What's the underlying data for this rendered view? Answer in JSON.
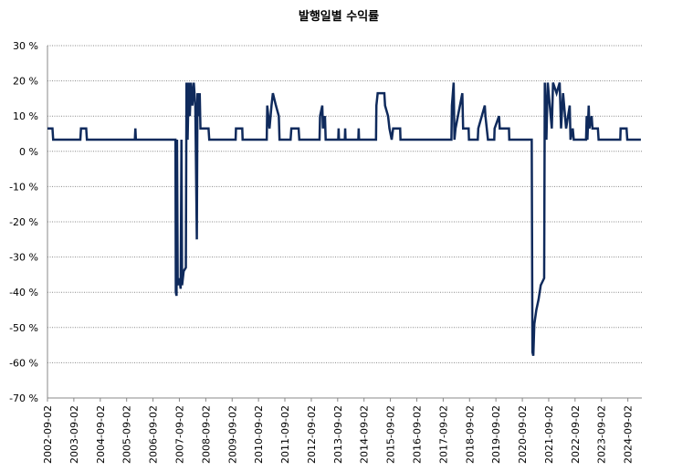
{
  "chart_data": {
    "type": "line",
    "title": "발행일별 수익률",
    "color": "#0f2a5c",
    "grid": true,
    "ylim": [
      -70,
      30
    ],
    "yticks": [
      {
        "value": -70,
        "label": "-70 %"
      },
      {
        "value": -60,
        "label": "-60 %"
      },
      {
        "value": -50,
        "label": "-50 %"
      },
      {
        "value": -40,
        "label": "-40 %"
      },
      {
        "value": -30,
        "label": "-30 %"
      },
      {
        "value": -20,
        "label": "-20 %"
      },
      {
        "value": -10,
        "label": "-10 %"
      },
      {
        "value": 0,
        "label": "0 %"
      },
      {
        "value": 10,
        "label": "10 %"
      },
      {
        "value": 20,
        "label": "20 %"
      },
      {
        "value": 30,
        "label": "30 %"
      }
    ],
    "xlim": [
      "2002-09-02",
      "2025-03-15"
    ],
    "xticks": [
      "2002-09-02",
      "2003-09-02",
      "2004-09-02",
      "2005-09-02",
      "2006-09-02",
      "2007-09-02",
      "2008-09-02",
      "2009-09-02",
      "2010-09-02",
      "2011-09-02",
      "2012-09-02",
      "2013-09-02",
      "2014-09-02",
      "2015-09-02",
      "2016-09-02",
      "2017-09-02",
      "2018-09-02",
      "2019-09-02",
      "2020-09-02",
      "2021-09-02",
      "2022-09-02",
      "2023-09-02",
      "2024-09-02"
    ],
    "x": [
      "2002-09-02",
      "2002-11-10",
      "2002-11-20",
      "2003-12-01",
      "2003-12-10",
      "2004-02-20",
      "2004-03-01",
      "2005-12-25",
      "2006-01-01",
      "2006-01-08",
      "2007-07-10",
      "2007-07-15",
      "2007-07-25",
      "2007-08-01",
      "2007-08-10",
      "2007-09-01",
      "2007-09-20",
      "2007-10-01",
      "2007-10-10",
      "2007-11-01",
      "2007-12-01",
      "2007-12-10",
      "2007-12-25",
      "2008-01-10",
      "2008-01-25",
      "2008-02-10",
      "2008-03-01",
      "2008-03-20",
      "2008-04-10",
      "2008-05-01",
      "2008-05-10",
      "2008-05-25",
      "2008-06-10",
      "2008-06-20",
      "2008-10-10",
      "2008-10-20",
      "2009-10-20",
      "2009-10-25",
      "2010-01-20",
      "2010-01-25",
      "2010-12-25",
      "2011-01-01",
      "2011-02-01",
      "2011-03-01",
      "2011-03-20",
      "2011-05-01",
      "2011-06-10",
      "2011-06-20",
      "2011-11-20",
      "2011-12-01",
      "2012-03-10",
      "2012-03-20",
      "2012-12-25",
      "2013-01-01",
      "2013-02-01",
      "2013-02-10",
      "2013-03-10",
      "2013-03-20",
      "2013-09-10",
      "2013-09-15",
      "2013-09-20",
      "2013-12-10",
      "2013-12-15",
      "2013-12-20",
      "2014-06-15",
      "2014-06-20",
      "2014-06-25",
      "2015-02-15",
      "2015-02-20",
      "2015-03-10",
      "2015-06-10",
      "2015-06-20",
      "2015-08-01",
      "2015-08-20",
      "2015-09-20",
      "2015-10-10",
      "2016-01-15",
      "2016-01-20",
      "2017-12-25",
      "2018-01-01",
      "2018-01-25",
      "2018-02-05",
      "2018-02-20",
      "2018-05-25",
      "2018-06-05",
      "2018-08-20",
      "2018-08-25",
      "2018-12-25",
      "2019-01-01",
      "2019-04-01",
      "2019-04-10",
      "2019-05-15",
      "2019-08-10",
      "2019-08-15",
      "2019-10-15",
      "2019-10-25",
      "2020-03-01",
      "2020-03-05",
      "2021-01-10",
      "2021-01-20",
      "2021-02-01",
      "2021-02-15",
      "2021-03-15",
      "2021-04-15",
      "2021-05-15",
      "2021-07-01",
      "2021-07-10",
      "2021-08-01",
      "2021-08-20",
      "2021-10-15",
      "2021-11-01",
      "2021-12-20",
      "2022-02-01",
      "2022-02-20",
      "2022-03-20",
      "2022-05-01",
      "2022-06-20",
      "2022-07-01",
      "2022-08-01",
      "2022-08-15",
      "2023-02-01",
      "2023-02-10",
      "2023-02-20",
      "2023-03-10",
      "2023-03-20",
      "2023-04-20",
      "2023-05-01",
      "2023-07-15",
      "2023-07-25",
      "2024-05-20",
      "2024-05-25",
      "2024-08-15",
      "2024-08-25",
      "2025-03-01"
    ],
    "values": [
      6.5,
      6.5,
      3.3,
      3.3,
      6.5,
      6.5,
      3.3,
      3.3,
      6.5,
      3.3,
      3.3,
      -40,
      -41,
      3.3,
      -38,
      -36,
      -39,
      3.3,
      -38,
      -34,
      -33,
      19.5,
      3.3,
      19.5,
      10,
      19.5,
      13,
      19.5,
      13,
      -25,
      16.5,
      10,
      16.5,
      6.5,
      6.5,
      3.3,
      3.3,
      6.5,
      6.5,
      3.3,
      3.3,
      13,
      6.5,
      13,
      16.5,
      13,
      10,
      3.3,
      3.3,
      6.5,
      6.5,
      3.3,
      3.3,
      10,
      13,
      6.5,
      10,
      3.3,
      3.3,
      6.5,
      3.3,
      3.3,
      6.5,
      3.3,
      3.3,
      6.5,
      3.3,
      3.3,
      13,
      16.5,
      16.5,
      13,
      10,
      6.5,
      3.3,
      6.5,
      6.5,
      3.3,
      3.3,
      13,
      19.5,
      3.3,
      6.5,
      16.5,
      6.5,
      6.5,
      3.3,
      3.3,
      6.5,
      13,
      10,
      3.3,
      3.3,
      6.5,
      10,
      6.5,
      6.5,
      3.3,
      3.3,
      -57,
      -58,
      -49,
      -45,
      -42,
      -38,
      -36,
      19.5,
      3.3,
      19.5,
      6.5,
      19.5,
      16.5,
      19.5,
      6.5,
      16.5,
      6.5,
      13,
      3.3,
      6.5,
      3.3,
      3.3,
      10,
      3.3,
      13,
      6.5,
      10,
      6.5,
      6.5,
      3.3,
      3.3,
      6.5,
      6.5,
      3.3,
      3.3
    ]
  }
}
